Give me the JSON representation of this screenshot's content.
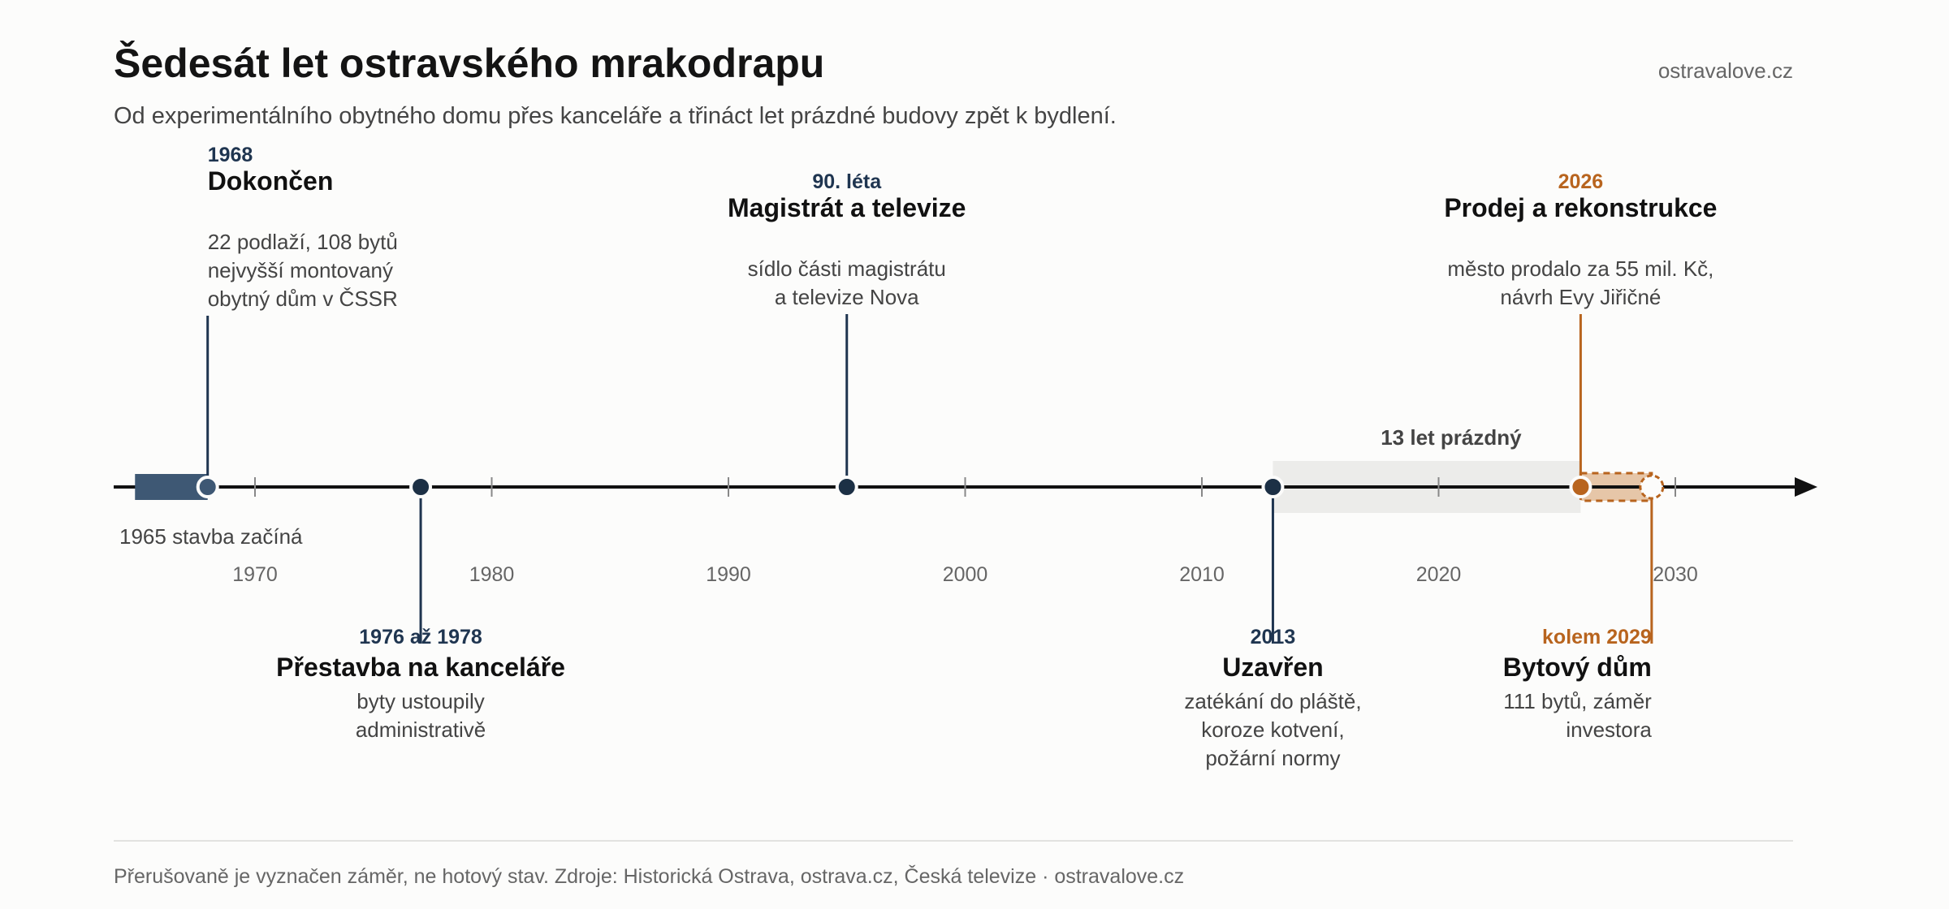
{
  "header": {
    "title": "Šedesát let ostravského mrakodrapu",
    "subtitle": "Od experimentálního obytného domu přes kanceláře a třináct let prázdné budovy zpět k bydlení.",
    "brand": "ostravalove.cz"
  },
  "footer": {
    "note": "Přerušovaně je vyznačen záměr, ne hotový stav. Zdroje: Historická Ostrava, ostrava.cz, Česká televize · ostravalove.cz"
  },
  "colors": {
    "navy": "#1f3550",
    "construction": "#3e5874",
    "orange": "#b8641e",
    "orange_fill": "#e6c6a8",
    "band": "#ececea",
    "axis": "#111111"
  },
  "chart_data": {
    "type": "timeline",
    "axis_range": [
      1964,
      2036
    ],
    "ticks": [
      "1970",
      "1980",
      "1990",
      "2000",
      "2010",
      "2020",
      "2030"
    ],
    "construction": {
      "from": 1965,
      "to": 1968,
      "label": "1965 stavba začíná"
    },
    "empty_period": {
      "from": 2013,
      "to": 2026,
      "label": "13 let prázdný"
    },
    "planned_period": {
      "from": 2026,
      "to": 2029
    },
    "events": [
      {
        "year": 1968,
        "side": "above",
        "align": "start",
        "tier": 1,
        "color": "navy",
        "marker": "filled-light",
        "date": "1968",
        "title": "Dokončen",
        "desc": [
          "22 podlaží, 108 bytů",
          "nejvyšší montovaný",
          "obytný dům v ČSSR"
        ]
      },
      {
        "year": 1977,
        "side": "below",
        "align": "middle",
        "color": "navy",
        "marker": "filled",
        "date": "1976 až 1978",
        "title": "Přestavba na kanceláře",
        "desc": [
          "byty ustoupily",
          "administrativě"
        ]
      },
      {
        "year": 1995,
        "side": "above",
        "align": "middle",
        "tier": 2,
        "color": "navy",
        "marker": "filled",
        "date": "90. léta",
        "title": "Magistrát a televize",
        "desc": [
          "sídlo části magistrátu",
          "a televize Nova"
        ]
      },
      {
        "year": 2013,
        "side": "below",
        "align": "middle",
        "color": "navy",
        "marker": "filled",
        "date": "2013",
        "title": "Uzavřen",
        "desc": [
          "zatékání do pláště,",
          "koroze kotvení,",
          "požární normy"
        ]
      },
      {
        "year": 2026,
        "side": "above",
        "align": "middle",
        "tier": 2,
        "color": "orange",
        "marker": "filled",
        "date": "2026",
        "title": "Prodej a rekonstrukce",
        "desc": [
          "město prodalo za 55 mil. Kč,",
          "návrh Evy Jiřičné"
        ]
      },
      {
        "year": 2029,
        "side": "below",
        "align": "end",
        "color": "orange",
        "marker": "dashed",
        "date": "kolem 2029",
        "title": "Bytový dům",
        "desc": [
          "111 bytů, záměr",
          "investora"
        ]
      }
    ]
  }
}
